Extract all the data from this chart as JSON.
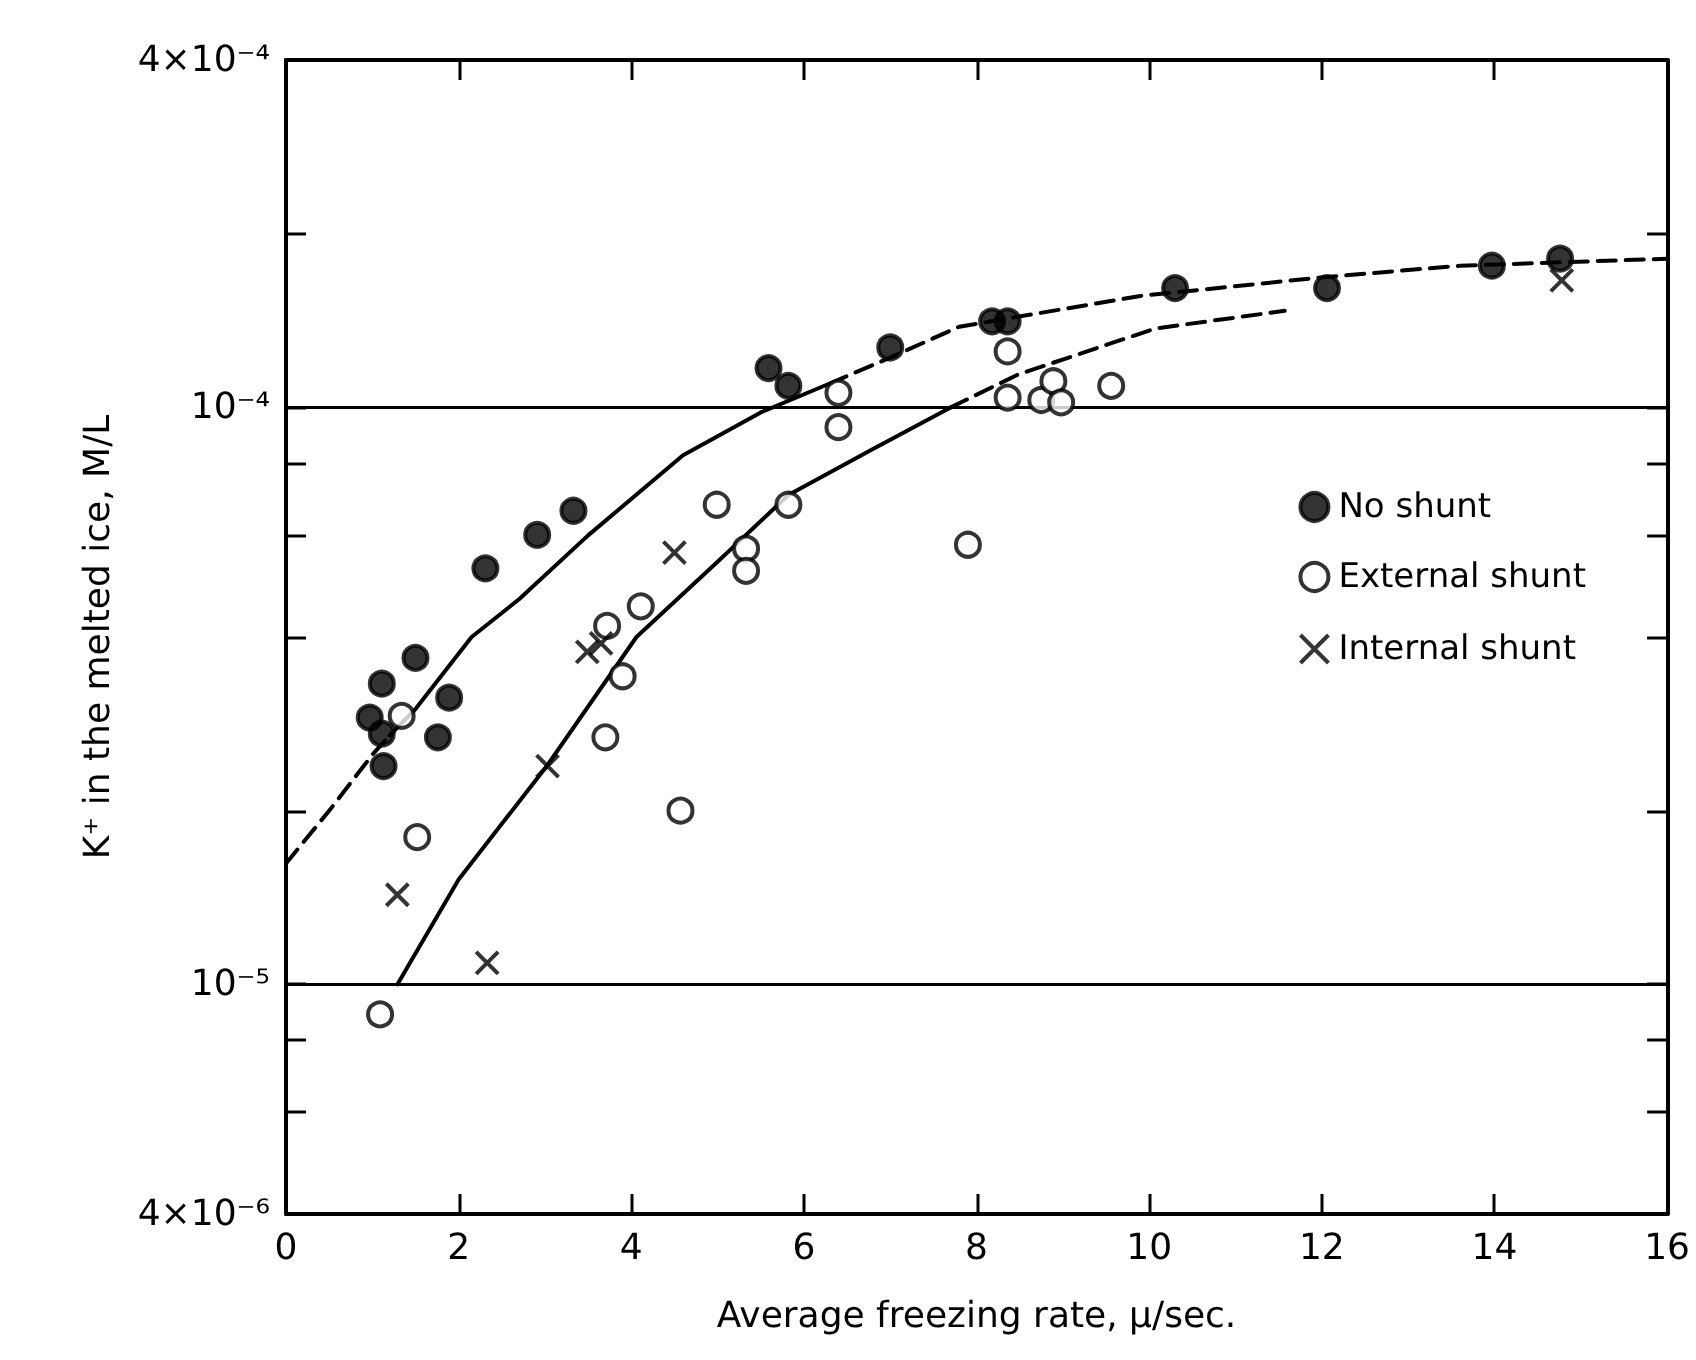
{
  "chart_data": {
    "type": "scatter",
    "xlabel": "Average freezing rate, μ/sec.",
    "ylabel": "K⁺ in the melted ice, M/L",
    "xlim": [
      0,
      16
    ],
    "xticks": [
      0,
      2,
      4,
      6,
      8,
      10,
      12,
      14,
      16
    ],
    "ylim": [
      4e-06,
      0.0004
    ],
    "log": "y",
    "yticks": [
      {
        "value": 0.0004,
        "label": "4×10⁻⁴"
      },
      {
        "value": 0.0002,
        "label": null
      },
      {
        "value": 0.0001,
        "label": "10⁻⁴"
      },
      {
        "value": 8e-05,
        "label": null
      },
      {
        "value": 6e-05,
        "label": null
      },
      {
        "value": 4e-05,
        "label": null
      },
      {
        "value": 2e-05,
        "label": null
      },
      {
        "value": 1e-05,
        "label": "10⁻⁵"
      },
      {
        "value": 8e-06,
        "label": null
      },
      {
        "value": 6e-06,
        "label": null
      },
      {
        "value": 4e-06,
        "label": "4×10⁻⁶"
      }
    ],
    "grid": false,
    "legend": "right",
    "ref_lines": [
      {
        "axis": "y",
        "value": 0.0001,
        "label": null,
        "color": "#000000"
      },
      {
        "axis": "y",
        "value": 1e-05,
        "label": null,
        "color": "#000000"
      }
    ],
    "series": [
      {
        "name": "No shunt",
        "color": "#000000",
        "marker": "circle",
        "x": [
          1.11,
          1.5,
          0.97,
          1.11,
          1.89,
          1.76,
          1.13,
          2.31,
          2.91,
          3.33,
          5.59,
          5.82,
          7.0,
          8.18,
          8.36,
          10.3,
          12.06,
          13.97,
          14.76
        ],
        "values": [
          3.32e-05,
          3.68e-05,
          2.9e-05,
          2.72e-05,
          3.14e-05,
          2.68e-05,
          2.39e-05,
          5.26e-05,
          6.01e-05,
          6.62e-05,
          0.000117,
          0.000109,
          0.000127,
          0.000141,
          0.000141,
          0.000161,
          0.000161,
          0.000176,
          0.000181
        ]
      },
      {
        "name": "External shunt",
        "color": "#ffffff",
        "marker": "circle",
        "x": [
          1.09,
          1.34,
          1.52,
          3.7,
          3.72,
          3.9,
          4.11,
          4.57,
          4.99,
          5.33,
          5.33,
          5.82,
          6.4,
          6.4,
          7.9,
          8.36,
          8.36,
          8.75,
          8.89,
          8.98,
          9.56
        ],
        "values": [
          8.87e-06,
          2.92e-05,
          1.8e-05,
          2.68e-05,
          4.18e-05,
          3.42e-05,
          4.52e-05,
          2e-05,
          6.78e-05,
          5.69e-05,
          5.21e-05,
          6.78e-05,
          0.000106,
          9.24e-05,
          5.78e-05,
          0.000125,
          0.000104,
          0.000103,
          0.000111,
          0.000102,
          0.000109
        ]
      },
      {
        "name": "Internal shunt",
        "color": "#000000",
        "marker": "cross",
        "x": [
          1.29,
          2.33,
          3.03,
          3.49,
          3.65,
          4.5,
          14.78
        ],
        "values": [
          1.43e-05,
          1.09e-05,
          2.39e-05,
          3.77e-05,
          3.9e-05,
          5.6e-05,
          0.000166
        ]
      },
      {
        "type": "line",
        "color": "#000000",
        "line_style": "dashed",
        "marker": "none",
        "x": [
          0,
          0.5,
          1.0,
          1.2
        ],
        "values": [
          1.62e-05,
          2e-05,
          2.5e-05,
          2.7e-05
        ]
      },
      {
        "type": "line",
        "color": "#000000",
        "line_style": "solid",
        "marker": "none",
        "x": [
          1.2,
          1.5,
          2.15,
          2.7,
          3.5,
          4.6,
          5.5,
          6.3
        ],
        "values": [
          2.7e-05,
          3e-05,
          4e-05,
          4.65e-05,
          6e-05,
          8.26e-05,
          9.8e-05,
          0.00011
        ]
      },
      {
        "type": "line",
        "color": "#000000",
        "line_style": "dashed",
        "marker": "none",
        "x": [
          6.3,
          7.0,
          7.8,
          9.9,
          12,
          13.6,
          16
        ],
        "values": [
          0.00011,
          0.000122,
          0.000138,
          0.000156,
          0.000168,
          0.000176,
          0.000181
        ]
      },
      {
        "type": "line",
        "color": "#000000",
        "line_style": "solid",
        "marker": "none",
        "x": [
          1.29,
          2,
          3.03,
          4.06,
          5,
          5.82,
          6.8,
          7.7
        ],
        "values": [
          1e-05,
          1.52e-05,
          2.4e-05,
          4e-05,
          5.4e-05,
          7.05e-05,
          8.47e-05,
          0.0001
        ]
      },
      {
        "type": "line",
        "color": "#000000",
        "line_style": "dashed",
        "marker": "none",
        "x": [
          7.7,
          8.48,
          10.07,
          11.57
        ],
        "values": [
          0.0001,
          0.000114,
          0.000137,
          0.000147
        ]
      }
    ]
  }
}
